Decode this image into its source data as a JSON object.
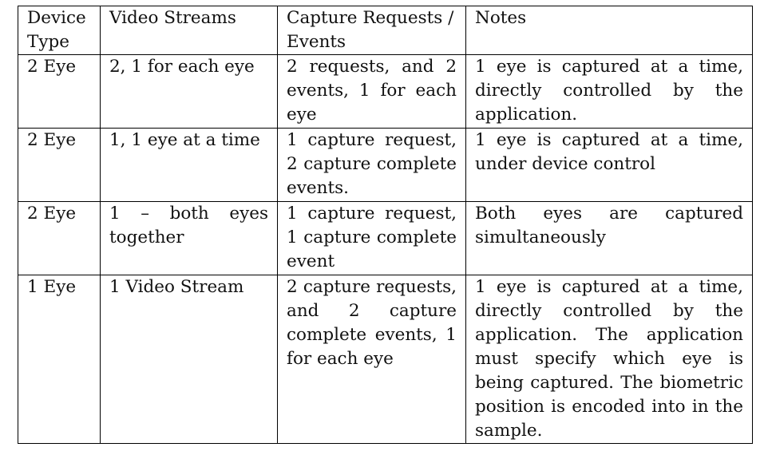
{
  "table": {
    "headers": [
      "Device Type",
      "Video Streams",
      "Capture Requests / Events",
      "Notes"
    ],
    "rows": [
      [
        "2 Eye",
        "2, 1 for each eye",
        "2 requests, and 2 events, 1 for each eye",
        "1 eye is captured at a time, directly controlled by the application."
      ],
      [
        "2 Eye",
        "1, 1 eye at a time",
        "1 capture request, 2 capture complete events.",
        "1 eye is captured at a time, under device control"
      ],
      [
        "2 Eye",
        "1 – both eyes together",
        "1 capture request, 1 capture complete event",
        "Both eyes are captured simultaneously"
      ],
      [
        "1 Eye",
        "1 Video Stream",
        "2 capture requests, and 2 capture complete events, 1 for each eye",
        "1 eye is captured at a time, directly controlled by the application. The application must specify which eye is being captured. The biometric position is encoded into in the sample."
      ]
    ]
  }
}
